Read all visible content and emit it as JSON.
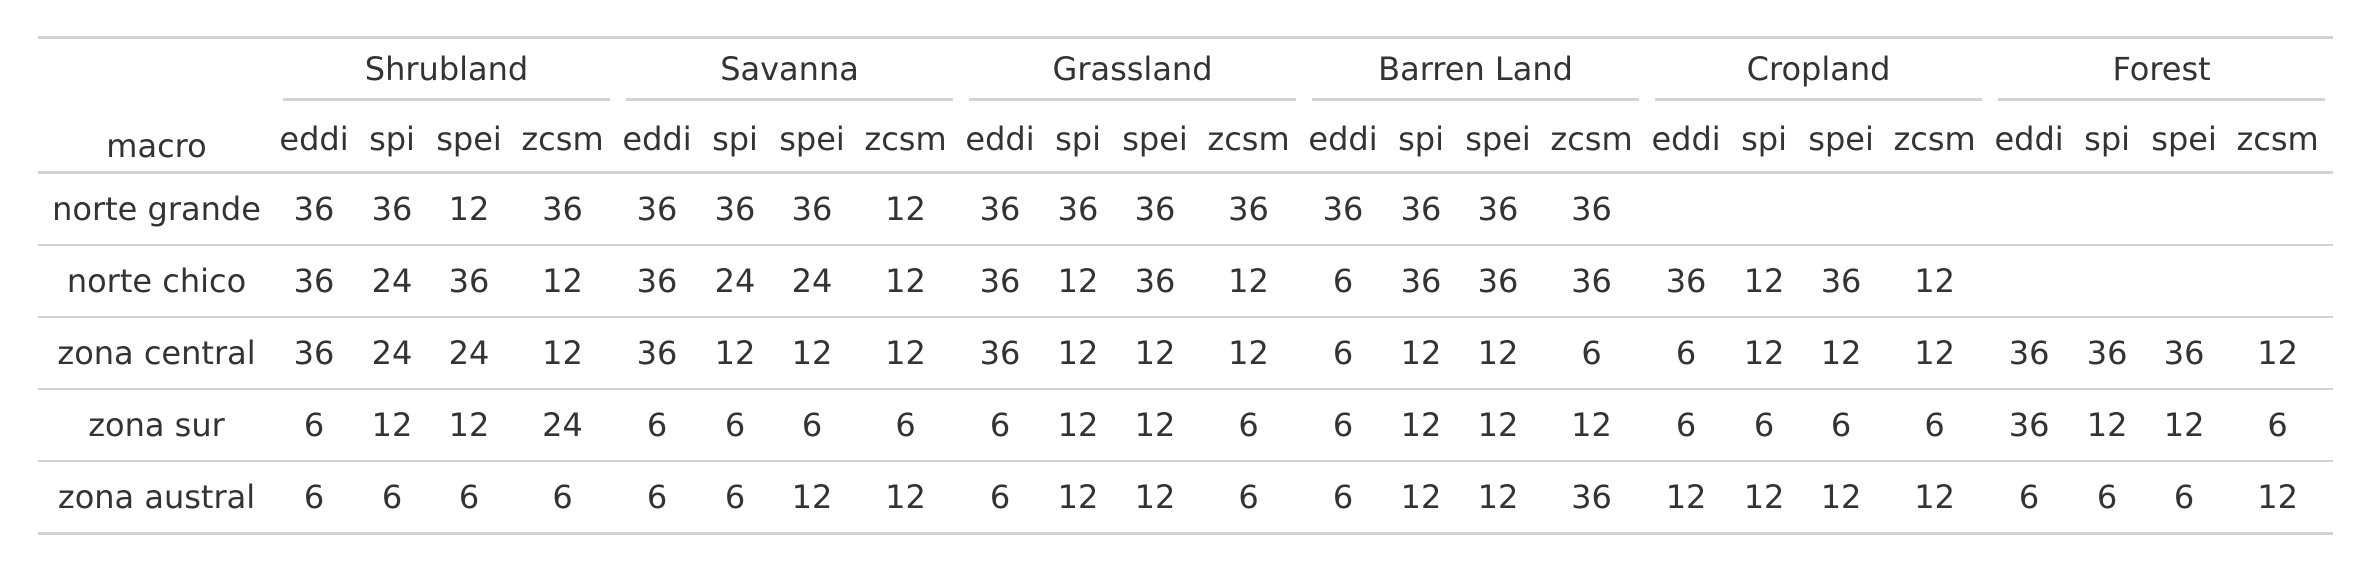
{
  "table": {
    "stub_header": "macro",
    "groups": [
      {
        "label": "Shrubland",
        "columns": [
          "eddi",
          "spi",
          "spei",
          "zcsm"
        ]
      },
      {
        "label": "Savanna",
        "columns": [
          "eddi",
          "spi",
          "spei",
          "zcsm"
        ]
      },
      {
        "label": "Grassland",
        "columns": [
          "eddi",
          "spi",
          "spei",
          "zcsm"
        ]
      },
      {
        "label": "Barren Land",
        "columns": [
          "eddi",
          "spi",
          "spei",
          "zcsm"
        ]
      },
      {
        "label": "Cropland",
        "columns": [
          "eddi",
          "spi",
          "spei",
          "zcsm"
        ]
      },
      {
        "label": "Forest",
        "columns": [
          "eddi",
          "spi",
          "spei",
          "zcsm"
        ]
      }
    ],
    "rows": [
      {
        "label": "norte grande",
        "values": [
          "36",
          "36",
          "12",
          "36",
          "36",
          "36",
          "36",
          "12",
          "36",
          "36",
          "36",
          "36",
          "36",
          "36",
          "36",
          "36",
          "",
          "",
          "",
          "",
          "",
          "",
          "",
          ""
        ]
      },
      {
        "label": "norte chico",
        "values": [
          "36",
          "24",
          "36",
          "12",
          "36",
          "24",
          "24",
          "12",
          "36",
          "12",
          "36",
          "12",
          "6",
          "36",
          "36",
          "36",
          "36",
          "12",
          "36",
          "12",
          "",
          "",
          "",
          ""
        ]
      },
      {
        "label": "zona central",
        "values": [
          "36",
          "24",
          "24",
          "12",
          "36",
          "12",
          "12",
          "12",
          "36",
          "12",
          "12",
          "12",
          "6",
          "12",
          "12",
          "6",
          "6",
          "12",
          "12",
          "12",
          "36",
          "36",
          "36",
          "12"
        ]
      },
      {
        "label": "zona sur",
        "values": [
          "6",
          "12",
          "12",
          "24",
          "6",
          "6",
          "6",
          "6",
          "6",
          "12",
          "12",
          "6",
          "6",
          "12",
          "12",
          "12",
          "6",
          "6",
          "6",
          "6",
          "36",
          "12",
          "12",
          "6"
        ]
      },
      {
        "label": "zona austral",
        "values": [
          "6",
          "6",
          "6",
          "6",
          "6",
          "6",
          "12",
          "12",
          "6",
          "12",
          "12",
          "6",
          "6",
          "12",
          "12",
          "36",
          "12",
          "12",
          "12",
          "12",
          "6",
          "6",
          "6",
          "12"
        ]
      }
    ]
  }
}
